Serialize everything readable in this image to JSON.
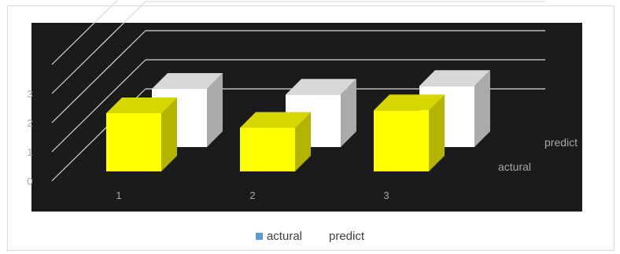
{
  "chart_data": {
    "type": "bar",
    "style": "3d-column-depth",
    "categories": [
      "1",
      "2",
      "3"
    ],
    "series": [
      {
        "name": "actural",
        "values": [
          2.0,
          1.5,
          2.1
        ],
        "color": "#ffff00",
        "legend_color": "#5b9bd5"
      },
      {
        "name": "predict",
        "values": [
          2.0,
          1.8,
          2.1
        ],
        "color": "#ffffff",
        "legend_color": "#ffffff"
      }
    ],
    "y_ticks": [
      "0",
      "1",
      "2",
      "3"
    ],
    "ylim": [
      0,
      3
    ],
    "grid": true,
    "legend_position": "bottom",
    "plot_background": "#1b1b1b",
    "gridline_color": "#d9d9d9"
  }
}
